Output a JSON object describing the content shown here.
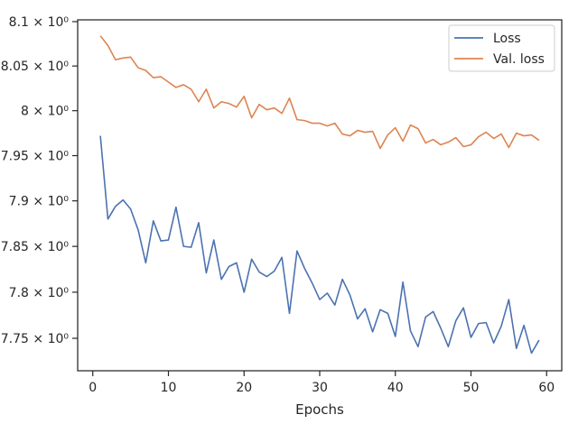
{
  "chart_data": {
    "type": "line",
    "title": "",
    "xlabel": "Epochs",
    "ylabel": "",
    "xlim": [
      -2,
      62
    ],
    "ylim": [
      7.715,
      8.102
    ],
    "xticks": [
      0,
      10,
      20,
      30,
      40,
      50,
      60
    ],
    "yticks": [
      7.75,
      7.8,
      7.85,
      7.9,
      7.95,
      8.0,
      8.05,
      8.1
    ],
    "ytick_labels": [
      "7.75 × 10⁰",
      "7.8 × 10⁰",
      "7.85 × 10⁰",
      "7.9 × 10⁰",
      "7.95 × 10⁰",
      "8 × 10⁰",
      "8.05 × 10⁰",
      "8.1 × 10⁰"
    ],
    "y_scale": "log",
    "grid": false,
    "legend_position": "top-right",
    "series": [
      {
        "name": "Loss",
        "color": "#4c72b0",
        "x": [
          1,
          2,
          3,
          4,
          5,
          6,
          7,
          8,
          9,
          10,
          11,
          12,
          13,
          14,
          15,
          16,
          17,
          18,
          19,
          20,
          21,
          22,
          23,
          24,
          25,
          26,
          27,
          28,
          29,
          30,
          31,
          32,
          33,
          34,
          35,
          36,
          37,
          38,
          39,
          40,
          41,
          42,
          43,
          44,
          45,
          46,
          47,
          48,
          49,
          50,
          51,
          52,
          53,
          54,
          55,
          56,
          57,
          58,
          59
        ],
        "values": [
          7.972,
          7.88,
          7.894,
          7.901,
          7.891,
          7.868,
          7.832,
          7.878,
          7.856,
          7.857,
          7.893,
          7.85,
          7.849,
          7.876,
          7.821,
          7.857,
          7.814,
          7.828,
          7.832,
          7.8,
          7.836,
          7.822,
          7.817,
          7.823,
          7.838,
          7.777,
          7.845,
          7.826,
          7.81,
          7.792,
          7.799,
          7.786,
          7.814,
          7.797,
          7.771,
          7.782,
          7.757,
          7.781,
          7.777,
          7.752,
          7.811,
          7.758,
          7.741,
          7.773,
          7.779,
          7.761,
          7.741,
          7.769,
          7.783,
          7.751,
          7.766,
          7.767,
          7.745,
          7.763,
          7.792,
          7.739,
          7.764,
          7.734,
          7.748
        ]
      },
      {
        "name": "Val. loss",
        "color": "#dd8452",
        "x": [
          1,
          2,
          3,
          4,
          5,
          6,
          7,
          8,
          9,
          10,
          11,
          12,
          13,
          14,
          15,
          16,
          17,
          18,
          19,
          20,
          21,
          22,
          23,
          24,
          25,
          26,
          27,
          28,
          29,
          30,
          31,
          32,
          33,
          34,
          35,
          36,
          37,
          38,
          39,
          40,
          41,
          42,
          43,
          44,
          45,
          46,
          47,
          48,
          49,
          50,
          51,
          52,
          53,
          54,
          55,
          56,
          57,
          58,
          59
        ],
        "values": [
          8.084,
          8.073,
          8.057,
          8.059,
          8.06,
          8.048,
          8.045,
          8.037,
          8.038,
          8.032,
          8.026,
          8.029,
          8.024,
          8.01,
          8.024,
          8.003,
          8.01,
          8.008,
          8.004,
          8.016,
          7.992,
          8.007,
          8.001,
          8.003,
          7.997,
          8.014,
          7.99,
          7.989,
          7.986,
          7.986,
          7.983,
          7.986,
          7.974,
          7.972,
          7.978,
          7.976,
          7.977,
          7.958,
          7.973,
          7.981,
          7.966,
          7.984,
          7.98,
          7.964,
          7.968,
          7.962,
          7.965,
          7.97,
          7.96,
          7.962,
          7.971,
          7.976,
          7.969,
          7.974,
          7.959,
          7.975,
          7.972,
          7.973,
          7.967
        ]
      }
    ]
  }
}
